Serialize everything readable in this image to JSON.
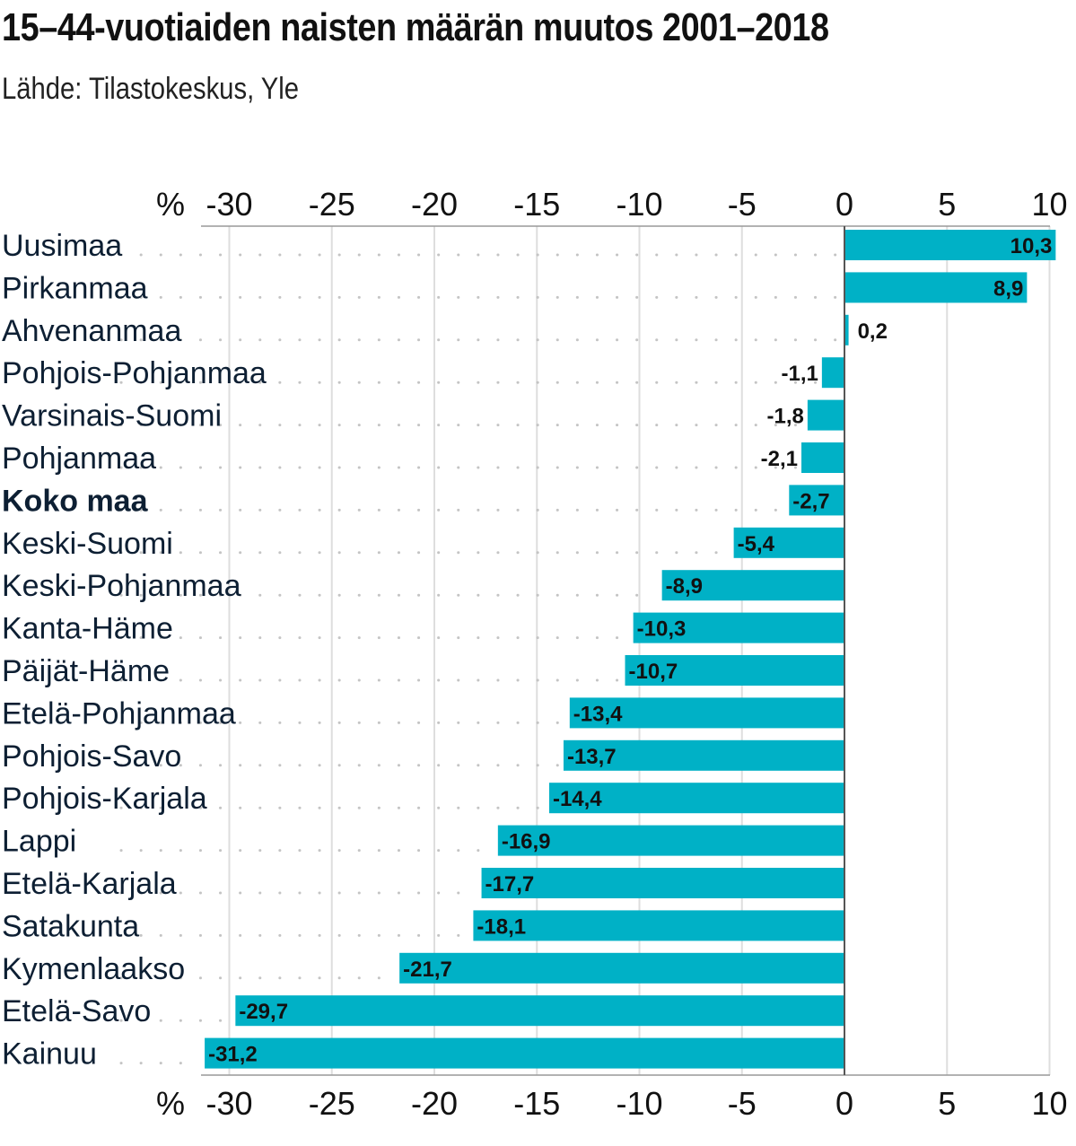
{
  "title": "15–44-vuotiaiden naisten määrän muutos 2001–2018",
  "subtitle": "Lähde: Tilastokeskus, Yle",
  "chart_data": {
    "type": "bar",
    "orientation": "horizontal",
    "unit_label": "%",
    "xlim": [
      -31.5,
      10
    ],
    "x_ticks": [
      -30,
      -25,
      -20,
      -15,
      -10,
      -5,
      0,
      5,
      10
    ],
    "x_tick_labels": [
      "-30",
      "-25",
      "-20",
      "-15",
      "-10",
      "-5",
      "0",
      "5",
      "10"
    ],
    "axis_position": "top and bottom",
    "grid": true,
    "bar_color": "#00b1c6",
    "label_color": "#0d1f33",
    "categories": [
      "Uusimaa",
      "Pirkanmaa",
      "Ahvenanmaa",
      "Pohjois-Pohjanmaa",
      "Varsinais-Suomi",
      "Pohjanmaa",
      "Koko maa",
      "Keski-Suomi",
      "Keski-Pohjanmaa",
      "Kanta-Häme",
      "Päijät-Häme",
      "Etelä-Pohjanmaa",
      "Pohjois-Savo",
      "Pohjois-Karjala",
      "Lappi",
      "Etelä-Karjala",
      "Satakunta",
      "Kymenlaakso",
      "Etelä-Savo",
      "Kainuu"
    ],
    "values": [
      10.3,
      8.9,
      0.2,
      -1.1,
      -1.8,
      -2.1,
      -2.7,
      -5.4,
      -8.9,
      -10.3,
      -10.7,
      -13.4,
      -13.7,
      -14.4,
      -16.9,
      -17.7,
      -18.1,
      -21.7,
      -29.7,
      -31.2
    ],
    "value_labels": [
      "10,3",
      "8,9",
      "0,2",
      "-1,1",
      "-1,8",
      "-2,1",
      "-2,7",
      "-5,4",
      "-8,9",
      "-10,3",
      "-10,7",
      "-13,4",
      "-13,7",
      "-14,4",
      "-16,9",
      "-17,7",
      "-18,1",
      "-21,7",
      "-29,7",
      "-31,2"
    ],
    "highlighted_category": "Koko maa"
  }
}
